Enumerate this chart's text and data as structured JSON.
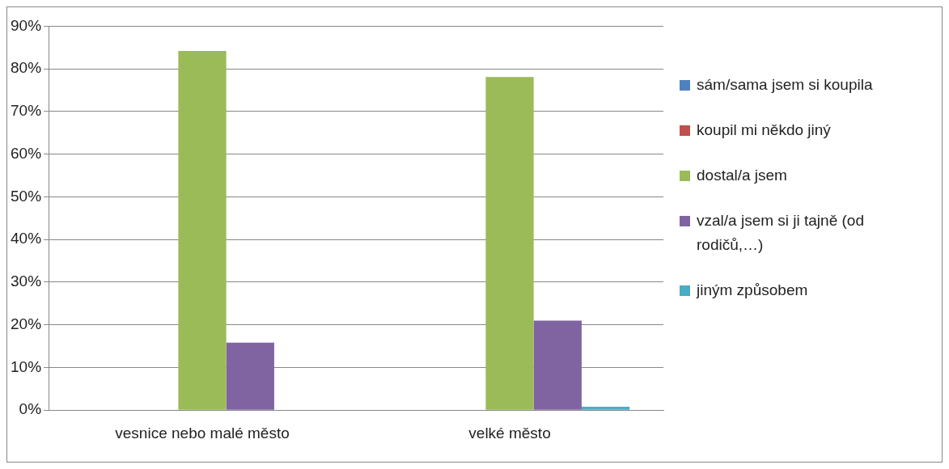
{
  "chart_data": {
    "type": "bar",
    "categories": [
      "vesnice nebo malé město",
      "velké město"
    ],
    "series": [
      {
        "name": "sám/sama jsem si koupila",
        "color": "#4f81bd",
        "values": [
          0,
          0
        ]
      },
      {
        "name": "koupil mi někdo jiný",
        "color": "#c0504d",
        "values": [
          0,
          0
        ]
      },
      {
        "name": "dostal/a jsem",
        "color": "#9bbb59",
        "values": [
          84.2,
          78.1
        ]
      },
      {
        "name": "vzal/a jsem si ji tajně (od rodičů,…)",
        "color": "#8064a2",
        "values": [
          15.8,
          21.0
        ]
      },
      {
        "name": "jiným způsobem",
        "color": "#4bacc6",
        "values": [
          0,
          0.8
        ]
      }
    ],
    "ylim": [
      0,
      90
    ],
    "yticks": [
      {
        "value": 0,
        "label": "0%"
      },
      {
        "value": 10,
        "label": "10%"
      },
      {
        "value": 20,
        "label": "20%"
      },
      {
        "value": 30,
        "label": "30%"
      },
      {
        "value": 40,
        "label": "40%"
      },
      {
        "value": 50,
        "label": "50%"
      },
      {
        "value": 60,
        "label": "60%"
      },
      {
        "value": 70,
        "label": "70%"
      },
      {
        "value": 80,
        "label": "80%"
      },
      {
        "value": 90,
        "label": "90%"
      }
    ],
    "grid": "y",
    "legend": "right"
  }
}
